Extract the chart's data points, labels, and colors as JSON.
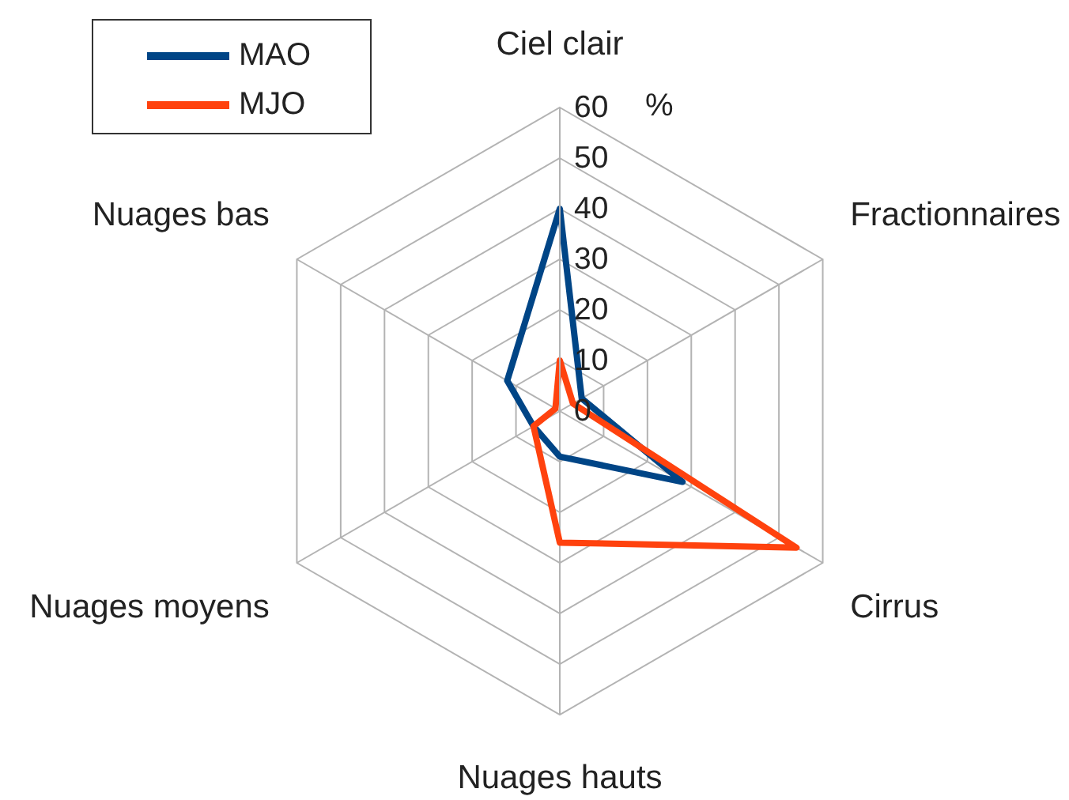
{
  "chart_data": {
    "type": "radar",
    "categories": [
      "Ciel clair",
      "Fractionnaires",
      "Cirrus",
      "Nuages hauts",
      "Nuages moyens",
      "Nuages bas"
    ],
    "series": [
      {
        "name": "MAO",
        "color": "#004586",
        "values": [
          40,
          5,
          28,
          9,
          6,
          12
        ]
      },
      {
        "name": "MJO",
        "color": "#ff420e",
        "values": [
          10,
          3,
          54,
          26,
          6,
          1
        ]
      }
    ],
    "ylim": [
      0,
      60
    ],
    "yticks": [
      0,
      10,
      20,
      30,
      40,
      50,
      60
    ],
    "ylabel": "%",
    "grid": true,
    "legend": "top left"
  }
}
